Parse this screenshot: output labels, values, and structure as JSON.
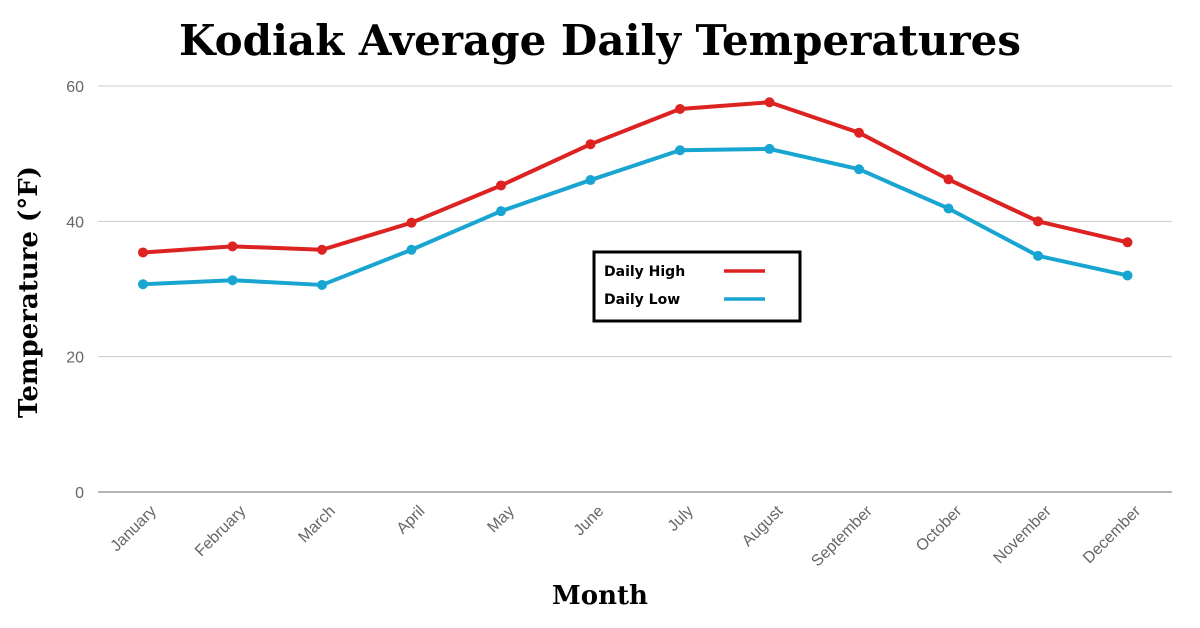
{
  "chart_data": {
    "type": "line",
    "title": "Kodiak Average Daily Temperatures",
    "xlabel": "Month",
    "ylabel": "Temperature (°F)",
    "categories": [
      "January",
      "February",
      "March",
      "April",
      "May",
      "June",
      "July",
      "August",
      "September",
      "October",
      "November",
      "December"
    ],
    "ylim": [
      0,
      60
    ],
    "yticks": [
      0,
      20,
      40,
      60
    ],
    "grid": true,
    "legend_position": "center",
    "series": [
      {
        "name": "Daily High",
        "color": "#dd2222",
        "values": [
          35.4,
          36.3,
          35.8,
          39.8,
          45.3,
          51.4,
          56.6,
          57.6,
          53.1,
          46.2,
          40.0,
          36.9
        ]
      },
      {
        "name": "Daily Low",
        "color": "#19a5d1",
        "values": [
          30.7,
          31.3,
          30.6,
          35.8,
          41.5,
          46.1,
          50.5,
          50.7,
          47.7,
          41.9,
          34.9,
          32.0
        ]
      }
    ]
  }
}
